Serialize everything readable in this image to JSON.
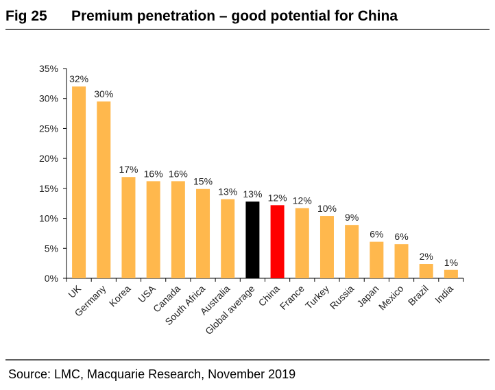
{
  "chart_data": {
    "type": "bar",
    "figure_label": "Fig 25",
    "title": "Premium penetration – good potential for China",
    "source": "Source: LMC, Macquarie Research, November 2019",
    "categories": [
      "UK",
      "Germany",
      "Korea",
      "USA",
      "Canada",
      "South Africa",
      "Australia",
      "Global average",
      "China",
      "France",
      "Turkey",
      "Russia",
      "Japan",
      "Mexico",
      "Brazil",
      "India"
    ],
    "values": [
      32.0,
      29.5,
      16.9,
      16.2,
      16.2,
      14.9,
      13.2,
      12.8,
      12.2,
      11.7,
      10.4,
      8.9,
      6.1,
      5.7,
      2.4,
      1.4
    ],
    "value_labels": [
      "32%",
      "30%",
      "17%",
      "16%",
      "16%",
      "15%",
      "13%",
      "13%",
      "12%",
      "12%",
      "10%",
      "9%",
      "6%",
      "6%",
      "2%",
      "1%"
    ],
    "colors": [
      "#ffb84d",
      "#ffb84d",
      "#ffb84d",
      "#ffb84d",
      "#ffb84d",
      "#ffb84d",
      "#ffb84d",
      "#000000",
      "#ff0000",
      "#ffb84d",
      "#ffb84d",
      "#ffb84d",
      "#ffb84d",
      "#ffb84d",
      "#ffb84d",
      "#ffb84d"
    ],
    "ylim": [
      0,
      35
    ],
    "yticks": [
      {
        "value": 0,
        "label": "0%"
      },
      {
        "value": 5,
        "label": "5%"
      },
      {
        "value": 10,
        "label": "10%"
      },
      {
        "value": 15,
        "label": "15%"
      },
      {
        "value": 20,
        "label": "20%"
      },
      {
        "value": 25,
        "label": "25%"
      },
      {
        "value": 30,
        "label": "30%"
      },
      {
        "value": 35,
        "label": "35%"
      }
    ],
    "grid": false
  }
}
